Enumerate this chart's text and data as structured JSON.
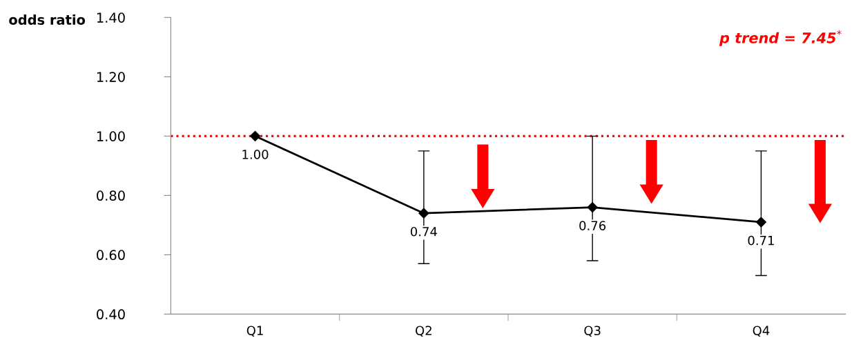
{
  "chart_data": {
    "type": "line",
    "ylabel": "odds ratio",
    "categories": [
      "Q1",
      "Q2",
      "Q3",
      "Q4"
    ],
    "series": [
      {
        "color": "#000000",
        "values": [
          1.0,
          0.74,
          0.76,
          0.71
        ],
        "errors": [
          null,
          [
            0.57,
            0.95
          ],
          [
            0.58,
            1.0
          ],
          [
            0.53,
            0.95
          ]
        ],
        "value_labels": [
          "1.00",
          "0.74",
          "0.76",
          "0.71"
        ]
      }
    ],
    "ylim": [
      0.4,
      1.4
    ],
    "yticks": [
      {
        "value": 0.4,
        "label": "0.40"
      },
      {
        "value": 0.6,
        "label": "0.60"
      },
      {
        "value": 0.8,
        "label": "0.80"
      },
      {
        "value": 1.0,
        "label": "1.00"
      },
      {
        "value": 1.2,
        "label": "1.20"
      },
      {
        "value": 1.4,
        "label": "1.40"
      }
    ],
    "ref_lines": [
      {
        "axis": "y",
        "value": 1.0,
        "color": "#e00000",
        "line_style": "dotted"
      }
    ],
    "annotations": [
      "p trend = 7.45$^{*}$"
    ],
    "marker": "diamond",
    "line_style": "solid",
    "grid": false,
    "legend": false
  }
}
